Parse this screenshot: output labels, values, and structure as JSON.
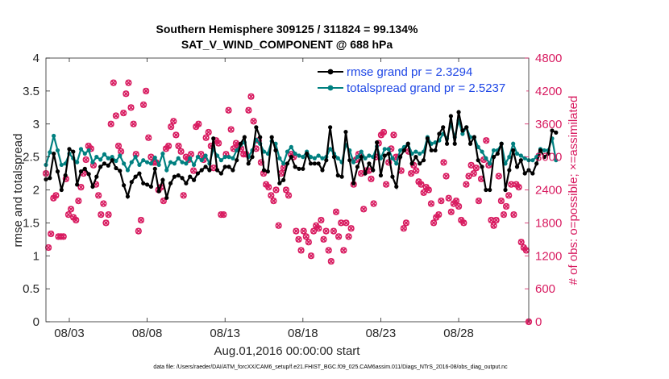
{
  "chart_data": {
    "type": "line",
    "title": "Southern Hemisphere 309125 / 311824 = 99.134%",
    "subtitle": "SAT_V_WIND_COMPONENT @ 688 hPa",
    "xlabel": "Aug.01,2016 00:00:00 start",
    "ylabel_left": "rmse and totalspread",
    "ylabel_right": "# of obs: o=possible; ×=assimilated",
    "footer": "data file: /Users/raeder/DAI/ATM_forcXX/CAM6_setup/f.e21.FHIST_BGC.f09_025.CAM6assim.011/Diags_NTrS_2016-08/obs_diag_output.nc",
    "x_range": [
      1.5,
      32.5
    ],
    "ylim_left": [
      0,
      4
    ],
    "ylim_right": [
      0,
      4800
    ],
    "x_ticks": [
      3,
      8,
      13,
      18,
      23,
      28
    ],
    "x_tick_labels": [
      "08/03",
      "08/08",
      "08/13",
      "08/18",
      "08/23",
      "08/28"
    ],
    "y_left_ticks": [
      0,
      0.5,
      1,
      1.5,
      2,
      2.5,
      3,
      3.5,
      4
    ],
    "y_left_tick_labels": [
      "0",
      "0.5",
      "1",
      "1.5",
      "2",
      "2.5",
      "3",
      "3.5",
      "4"
    ],
    "y_right_ticks": [
      0,
      600,
      1200,
      1800,
      2400,
      3000,
      3600,
      4200,
      4800
    ],
    "y_right_tick_labels": [
      "0",
      "600",
      "1200",
      "1800",
      "2400",
      "3000",
      "3600",
      "4200",
      "4800"
    ],
    "legend_position": "top-right",
    "x_start": 1.5,
    "x_step": 0.25,
    "series": [
      {
        "name": "rmse grand pr = 2.3294",
        "color": "#000000",
        "values": [
          2.16,
          2.18,
          2.55,
          2.28,
          2.0,
          2.22,
          2.62,
          2.58,
          2.08,
          2.28,
          2.32,
          2.24,
          2.05,
          2.2,
          2.35,
          2.4,
          2.37,
          2.45,
          2.33,
          2.29,
          2.07,
          1.9,
          2.12,
          2.2,
          2.25,
          2.1,
          2.08,
          2.05,
          2.32,
          1.98,
          2.15,
          1.88,
          2.1,
          2.2,
          2.22,
          2.18,
          2.1,
          2.2,
          2.15,
          2.25,
          2.3,
          2.35,
          2.3,
          2.78,
          2.3,
          2.25,
          2.35,
          2.35,
          2.3,
          2.45,
          2.7,
          2.8,
          2.4,
          2.5,
          2.95,
          2.8,
          2.3,
          2.28,
          2.8,
          2.6,
          2.1,
          2.15,
          2.4,
          2.5,
          2.35,
          2.32,
          2.32,
          2.55,
          2.4,
          2.4,
          2.4,
          2.3,
          2.45,
          2.95,
          2.5,
          2.22,
          2.2,
          2.88,
          2.45,
          2.1,
          2.35,
          2.5,
          2.25,
          2.4,
          2.3,
          2.72,
          2.22,
          2.52,
          2.55,
          2.2,
          2.05,
          2.5,
          2.6,
          2.7,
          2.4,
          2.5,
          2.4,
          2.45,
          2.78,
          2.6,
          2.6,
          2.85,
          2.95,
          2.7,
          3.12,
          2.7,
          3.18,
          2.9,
          2.95,
          2.7,
          2.8,
          2.45,
          2.35,
          2.0,
          2.0,
          2.5,
          2.55,
          2.7,
          2.0,
          2.3,
          2.6,
          2.35,
          2.45,
          2.25,
          2.3,
          2.25,
          2.4,
          2.6,
          2.5,
          2.55,
          2.9,
          2.87
        ]
      },
      {
        "name": "totalspread grand pr = 2.5237",
        "color": "#008080",
        "values": [
          2.38,
          2.57,
          2.82,
          2.6,
          2.38,
          2.4,
          2.55,
          2.48,
          2.42,
          2.62,
          2.55,
          2.6,
          2.42,
          2.5,
          2.46,
          2.54,
          2.48,
          2.5,
          2.44,
          2.52,
          2.4,
          2.3,
          2.42,
          2.5,
          2.38,
          2.45,
          2.42,
          2.4,
          2.49,
          2.38,
          2.55,
          2.3,
          2.42,
          2.4,
          2.48,
          2.42,
          2.4,
          2.48,
          2.38,
          2.5,
          2.45,
          2.52,
          2.4,
          2.62,
          2.52,
          2.45,
          2.5,
          2.5,
          2.48,
          2.6,
          2.68,
          2.72,
          2.5,
          2.6,
          2.76,
          2.7,
          2.58,
          2.55,
          2.74,
          2.7,
          2.48,
          2.4,
          2.58,
          2.65,
          2.55,
          2.52,
          2.5,
          2.58,
          2.5,
          2.48,
          2.52,
          2.48,
          2.5,
          2.62,
          2.55,
          2.48,
          2.42,
          2.68,
          2.6,
          2.42,
          2.5,
          2.58,
          2.48,
          2.52,
          2.5,
          2.66,
          2.48,
          2.62,
          2.62,
          2.48,
          2.4,
          2.6,
          2.65,
          2.7,
          2.55,
          2.58,
          2.55,
          2.58,
          2.8,
          2.7,
          2.72,
          2.75,
          2.85,
          2.78,
          3.0,
          2.8,
          3.05,
          2.85,
          2.95,
          2.8,
          2.8,
          2.65,
          2.58,
          2.48,
          2.4,
          2.6,
          2.6,
          2.7,
          2.4,
          2.5,
          2.7,
          2.55,
          2.52,
          2.48,
          2.45,
          2.45,
          2.5,
          2.62,
          2.6,
          2.6,
          2.78,
          2.45
        ]
      }
    ],
    "obs_possible": {
      "name": "possible",
      "color": "#d81b60",
      "values": [
        2700,
        1350,
        1600,
        2250,
        2300,
        1550,
        1550,
        1550,
        2600,
        1950,
        2050,
        1900,
        1850,
        2200,
        2450,
        2700,
        2950,
        3200,
        3150,
        2850,
        2500,
        2300,
        1950,
        2150,
        1800,
        1950,
        3600,
        4350,
        3750,
        3200,
        3100,
        3800,
        4150,
        4350,
        3900,
        3600,
        3050,
        1650,
        1850,
        3950,
        4200,
        3350,
        3000,
        2900,
        2900,
        2400,
        2450,
        2200,
        3150,
        3200,
        3550,
        3650,
        3400,
        3200,
        3100,
        2300,
        3000,
        2950,
        3050,
        2750,
        3550,
        3600,
        3050,
        2950,
        3350,
        3450,
        3200,
        2800,
        3300,
        3250,
        1950,
        1950,
        3050,
        3850,
        3500,
        3150,
        3250,
        3200,
        3150,
        3050,
        3050,
        3850,
        4100,
        3650,
        3150,
        3300,
        2900,
        2700,
        2500,
        2450,
        2300,
        2200,
        2400,
        1750,
        2700,
        2800,
        2400,
        2300,
        3050,
        3000,
        1650,
        1500,
        1300,
        1650,
        1550,
        1450,
        1200,
        1650,
        1750,
        1700,
        1850,
        1500,
        1650,
        1300,
        1100,
        1650,
        2000,
        1550,
        1800,
        1300,
        1800,
        1550,
        1700,
        2500,
        2950,
        3050,
        2700,
        2050,
        2750,
        2750,
        2600,
        2150,
        3000,
        3250,
        3400,
        3450,
        2500,
        2900,
        3150,
        3400,
        3000,
        3000,
        2750,
        1700,
        1800,
        3100,
        2700,
        2850,
        2750,
        2550,
        2500,
        2350,
        2450,
        2400,
        2150,
        1800,
        1900,
        1950,
        2200,
        2900,
        2650,
        2250,
        2000,
        2150,
        2200,
        2100,
        1850,
        1800,
        2500,
        2650,
        2850,
        2700,
        2800,
        2200,
        2600,
        2950,
        3300,
        2850,
        1850,
        1750,
        1850,
        2650,
        2200,
        1950,
        2100,
        2300,
        2500,
        1950,
        2500,
        2450,
        1450,
        1350,
        1300,
        0
      ]
    }
  }
}
